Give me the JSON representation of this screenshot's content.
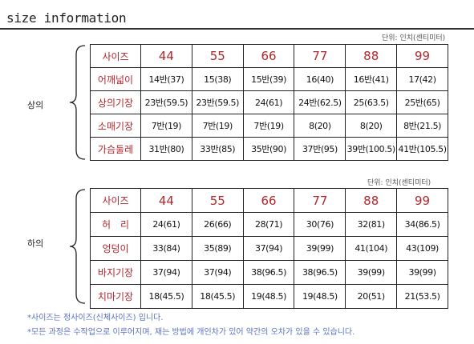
{
  "title": "size information",
  "unit_top": "단위: 인치(센티미터)",
  "unit_bottom": "단위: 인치(센티미터)",
  "top_group_label": "상의",
  "bottom_group_label": "하의",
  "top_table": {
    "header_label": "사이즈",
    "sizes": [
      "44",
      "55",
      "66",
      "77",
      "88",
      "99"
    ],
    "rows": [
      {
        "label": "어깨넓이",
        "values": [
          "14반(37)",
          "15(38)",
          "15반(39)",
          "16(40)",
          "16반(41)",
          "17(42)"
        ]
      },
      {
        "label": "상의기장",
        "values": [
          "23반(59.5)",
          "23반(59.5)",
          "24(61)",
          "24반(62.5)",
          "25(63.5)",
          "25반(65)"
        ]
      },
      {
        "label": "소매기장",
        "values": [
          "7반(19)",
          "7반(19)",
          "7반(19)",
          "8(20)",
          "8(20)",
          "8반(21.5)"
        ]
      },
      {
        "label": "가슴둘레",
        "values": [
          "31반(80)",
          "33반(85)",
          "35반(90)",
          "37반(95)",
          "39반(100.5)",
          "41반(105.5)"
        ]
      }
    ]
  },
  "bottom_table": {
    "header_label": "사이즈",
    "sizes": [
      "44",
      "55",
      "66",
      "77",
      "88",
      "99"
    ],
    "rows": [
      {
        "label": "허　리",
        "values": [
          "24(61)",
          "26(66)",
          "28(71)",
          "30(76)",
          "32(81)",
          "34(86.5)"
        ]
      },
      {
        "label": "엉덩이",
        "values": [
          "33(84)",
          "35(89)",
          "37(94)",
          "39(99)",
          "41(104)",
          "43(109)"
        ]
      },
      {
        "label": "바지기장",
        "values": [
          "37(94)",
          "37(94)",
          "38(96.5)",
          "38(96.5)",
          "39(99)",
          "39(99)"
        ]
      },
      {
        "label": "치마기장",
        "values": [
          "18(45.5)",
          "18(45.5)",
          "19(48.5)",
          "19(48.5)",
          "20(51)",
          "21(53.5)"
        ]
      }
    ]
  },
  "notes": [
    "*사이즈는 정사이즈(신체사이즈) 입니다.",
    "*모든 과정은 수작업으로 이루어지며,  재는 방법에 개인차가 있어 약간의 오차가 있을 수 있습니다."
  ],
  "colors": {
    "label_red": "#b3262d",
    "note_blue": "#5a72c2",
    "border": "#222222"
  }
}
